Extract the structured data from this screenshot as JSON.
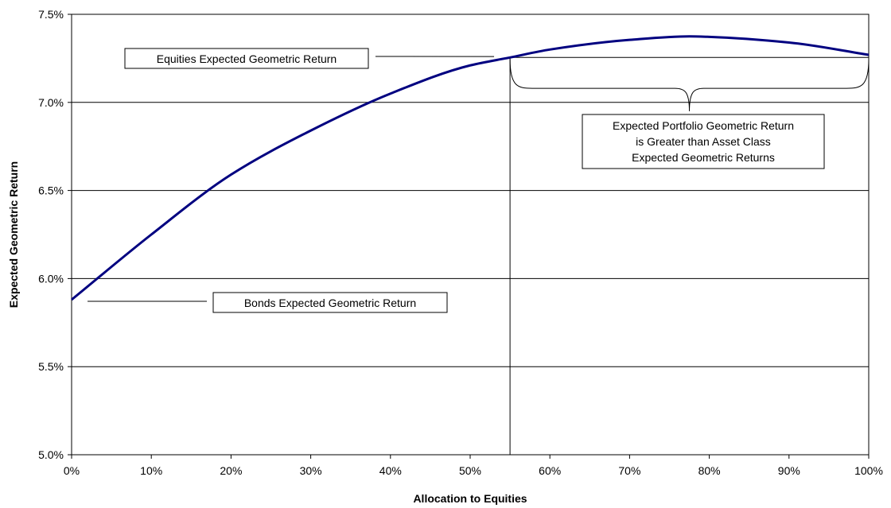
{
  "chart_data": {
    "type": "line",
    "title": "",
    "xlabel": "Allocation to Equities",
    "ylabel": "Expected Geometric Return",
    "xlim": [
      0,
      1
    ],
    "ylim": [
      0.05,
      0.075
    ],
    "x_ticks": [
      {
        "value": 0.0,
        "label": "0%"
      },
      {
        "value": 0.1,
        "label": "10%"
      },
      {
        "value": 0.2,
        "label": "20%"
      },
      {
        "value": 0.3,
        "label": "30%"
      },
      {
        "value": 0.4,
        "label": "40%"
      },
      {
        "value": 0.5,
        "label": "50%"
      },
      {
        "value": 0.6,
        "label": "60%"
      },
      {
        "value": 0.7,
        "label": "70%"
      },
      {
        "value": 0.8,
        "label": "80%"
      },
      {
        "value": 0.9,
        "label": "90%"
      },
      {
        "value": 1.0,
        "label": "100%"
      }
    ],
    "y_ticks": [
      {
        "value": 0.05,
        "label": "5.0%"
      },
      {
        "value": 0.055,
        "label": "5.5%"
      },
      {
        "value": 0.06,
        "label": "6.0%"
      },
      {
        "value": 0.065,
        "label": "6.5%"
      },
      {
        "value": 0.07,
        "label": "7.0%"
      },
      {
        "value": 0.075,
        "label": "7.5%"
      }
    ],
    "grid": "horizontal",
    "series": [
      {
        "color": "#000080",
        "x": [
          0.0,
          0.1,
          0.2,
          0.3,
          0.4,
          0.5,
          0.55,
          0.6,
          0.7,
          0.775,
          0.8,
          0.9,
          1.0
        ],
        "y": [
          0.0588,
          0.0625,
          0.0659,
          0.0684,
          0.0705,
          0.0721,
          0.07255,
          0.073,
          0.07355,
          0.07375,
          0.07372,
          0.0734,
          0.0727
        ]
      }
    ],
    "reference_lines": {
      "equities_return": 0.07255,
      "crossover_allocation": 0.55
    },
    "annotations": [
      {
        "text": "Equities Expected Geometric Return",
        "points_to": {
          "x": 0.53,
          "y": 0.0726
        }
      },
      {
        "text": "Bonds Expected Geometric Return",
        "points_to": {
          "x": 0.02,
          "y": 0.0588
        }
      },
      {
        "text": "Expected Portfolio Geometric Return\nis Greater than Asset Class\nExpected Geometric Returns"
      }
    ]
  }
}
